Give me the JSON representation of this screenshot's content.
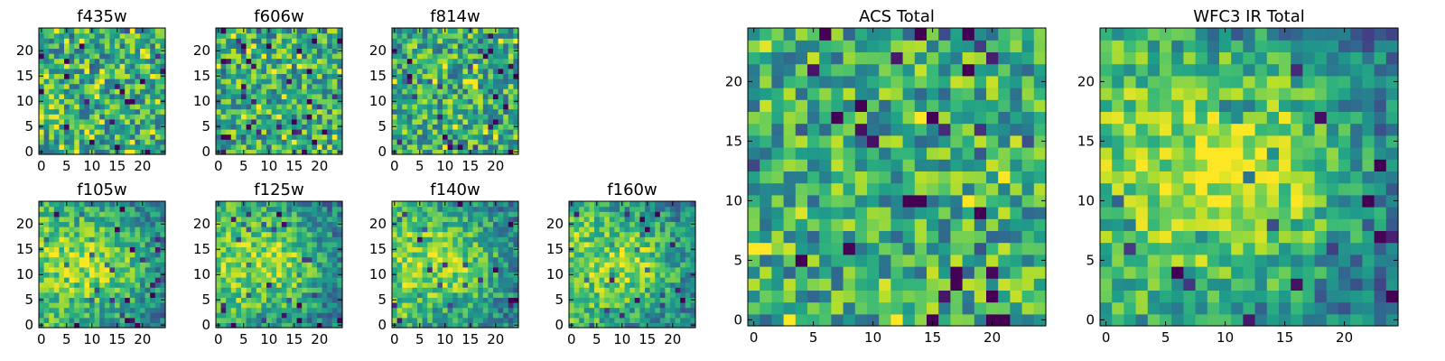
{
  "chart_data": [
    {
      "type": "heatmap",
      "title": "f435w",
      "xticks": [
        "0",
        "5",
        "10",
        "15",
        "20"
      ],
      "yticks": [
        "0",
        "5",
        "10",
        "15",
        "20"
      ],
      "xlim": [
        0,
        25
      ],
      "ylim": [
        0,
        25
      ],
      "grid": false,
      "colormap": "viridis",
      "size": 25,
      "seed": 11,
      "pattern": "noise",
      "weight": 0.3
    },
    {
      "type": "heatmap",
      "title": "f606w",
      "xticks": [
        "0",
        "5",
        "10",
        "15",
        "20"
      ],
      "yticks": [
        "0",
        "5",
        "10",
        "15",
        "20"
      ],
      "xlim": [
        0,
        25
      ],
      "ylim": [
        0,
        25
      ],
      "grid": false,
      "colormap": "viridis",
      "size": 25,
      "seed": 22,
      "pattern": "noise",
      "weight": 0.0
    },
    {
      "type": "heatmap",
      "title": "f814w",
      "xticks": [
        "0",
        "5",
        "10",
        "15",
        "20"
      ],
      "yticks": [
        "0",
        "5",
        "10",
        "15",
        "20"
      ],
      "xlim": [
        0,
        25
      ],
      "ylim": [
        0,
        25
      ],
      "grid": false,
      "colormap": "viridis",
      "size": 25,
      "seed": 33,
      "pattern": "noise",
      "weight": 0.0
    },
    {
      "type": "heatmap",
      "title": "f105w",
      "xticks": [
        "0",
        "5",
        "10",
        "15",
        "20"
      ],
      "yticks": [
        "0",
        "5",
        "10",
        "15",
        "20"
      ],
      "xlim": [
        0,
        25
      ],
      "ylim": [
        0,
        25
      ],
      "grid": false,
      "colormap": "viridis",
      "size": 25,
      "seed": 44,
      "pattern": "central",
      "weight": 0.45
    },
    {
      "type": "heatmap",
      "title": "f125w",
      "xticks": [
        "0",
        "5",
        "10",
        "15",
        "20"
      ],
      "yticks": [
        "0",
        "5",
        "10",
        "15",
        "20"
      ],
      "xlim": [
        0,
        25
      ],
      "ylim": [
        0,
        25
      ],
      "grid": false,
      "colormap": "viridis",
      "size": 25,
      "seed": 55,
      "pattern": "central",
      "weight": 0.45
    },
    {
      "type": "heatmap",
      "title": "f140w",
      "xticks": [
        "0",
        "5",
        "10",
        "15",
        "20"
      ],
      "yticks": [
        "0",
        "5",
        "10",
        "15",
        "20"
      ],
      "xlim": [
        0,
        25
      ],
      "ylim": [
        0,
        25
      ],
      "grid": false,
      "colormap": "viridis",
      "size": 25,
      "seed": 66,
      "pattern": "central",
      "weight": 0.4
    },
    {
      "type": "heatmap",
      "title": "f160w",
      "xticks": [
        "0",
        "5",
        "10",
        "15",
        "20"
      ],
      "yticks": [
        "0",
        "5",
        "10",
        "15",
        "20"
      ],
      "xlim": [
        0,
        25
      ],
      "ylim": [
        0,
        25
      ],
      "grid": false,
      "colormap": "viridis",
      "size": 25,
      "seed": 77,
      "pattern": "central",
      "weight": 0.4
    },
    {
      "type": "heatmap",
      "title": "ACS Total",
      "xticks": [
        "0",
        "5",
        "10",
        "15",
        "20"
      ],
      "yticks": [
        "0",
        "5",
        "10",
        "15",
        "20"
      ],
      "xlim": [
        0,
        25
      ],
      "ylim": [
        0,
        25
      ],
      "grid": false,
      "colormap": "viridis",
      "size": 25,
      "seed": 88,
      "pattern": "noise",
      "weight": 0.1
    },
    {
      "type": "heatmap",
      "title": "WFC3 IR Total",
      "xticks": [
        "0",
        "5",
        "10",
        "15",
        "20"
      ],
      "yticks": [
        "0",
        "5",
        "10",
        "15",
        "20"
      ],
      "xlim": [
        0,
        25
      ],
      "ylim": [
        0,
        25
      ],
      "grid": false,
      "colormap": "viridis",
      "size": 25,
      "seed": 99,
      "pattern": "central",
      "weight": 0.6
    }
  ]
}
